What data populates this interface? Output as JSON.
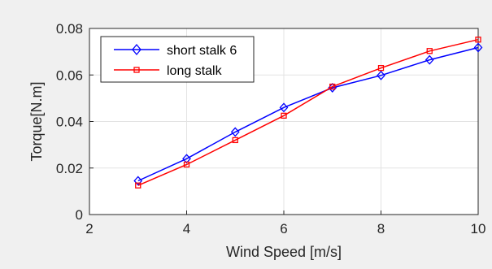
{
  "chart_data": {
    "type": "line",
    "xlabel": "Wind Speed [m/s]",
    "ylabel": "Torque[N.m]",
    "xlim": [
      2,
      10
    ],
    "ylim": [
      0,
      0.08
    ],
    "xticks": [
      2,
      4,
      6,
      8,
      10
    ],
    "yticks": [
      0,
      0.02,
      0.04,
      0.06,
      0.08
    ],
    "xtick_labels": [
      "2",
      "4",
      "6",
      "8",
      "10"
    ],
    "ytick_labels": [
      "0",
      "0.02",
      "0.04",
      "0.06",
      "0.08"
    ],
    "grid": true,
    "legend_position": "top-left",
    "series": [
      {
        "name": "short stalk 6",
        "color": "#0000ff",
        "marker": "diamond",
        "x": [
          3,
          4,
          5,
          6,
          7,
          8,
          9,
          10
        ],
        "y": [
          0.0145,
          0.024,
          0.0355,
          0.046,
          0.0545,
          0.0598,
          0.0665,
          0.0718
        ]
      },
      {
        "name": "long stalk",
        "color": "#ff0000",
        "marker": "square",
        "x": [
          3,
          4,
          5,
          6,
          7,
          8,
          9,
          10
        ],
        "y": [
          0.0125,
          0.0215,
          0.032,
          0.0425,
          0.055,
          0.063,
          0.0703,
          0.0752
        ]
      }
    ]
  }
}
